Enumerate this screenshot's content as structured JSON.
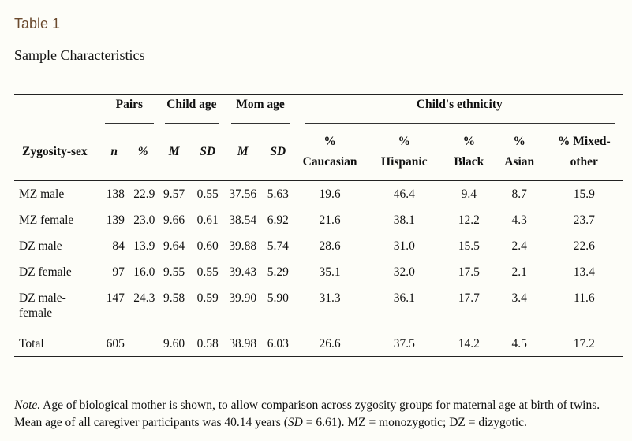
{
  "table_label": "Table 1",
  "table_title": "Sample Characteristics",
  "group_headers": {
    "pairs": "Pairs",
    "child_age": "Child age",
    "mom_age": "Mom age",
    "ethnicity": "Child's ethnicity"
  },
  "col_headers": {
    "zygosity": "Zygosity-sex",
    "n": "n",
    "pct": "%",
    "child_m": "M",
    "child_sd": "SD",
    "mom_m": "M",
    "mom_sd": "SD",
    "caucasian_1": "%",
    "caucasian_2": "Caucasian",
    "hispanic_1": "%",
    "hispanic_2": "Hispanic",
    "black_1": "%",
    "black_2": "Black",
    "asian_1": "%",
    "asian_2": "Asian",
    "mixed_1": "% Mixed-",
    "mixed_2": "other"
  },
  "rows": [
    {
      "group": "MZ male",
      "group2": "",
      "n": "138",
      "pct": "22.9",
      "child_m": "9.57",
      "child_sd": "0.55",
      "mom_m": "37.56",
      "mom_sd": "5.63",
      "caucasian": "19.6",
      "hispanic": "46.4",
      "black": "9.4",
      "asian": "8.7",
      "mixed": "15.9"
    },
    {
      "group": "MZ female",
      "group2": "",
      "n": "139",
      "pct": "23.0",
      "child_m": "9.66",
      "child_sd": "0.61",
      "mom_m": "38.54",
      "mom_sd": "6.92",
      "caucasian": "21.6",
      "hispanic": "38.1",
      "black": "12.2",
      "asian": "4.3",
      "mixed": "23.7"
    },
    {
      "group": "DZ male",
      "group2": "",
      "n": "84",
      "pct": "13.9",
      "child_m": "9.64",
      "child_sd": "0.60",
      "mom_m": "39.88",
      "mom_sd": "5.74",
      "caucasian": "28.6",
      "hispanic": "31.0",
      "black": "15.5",
      "asian": "2.4",
      "mixed": "22.6"
    },
    {
      "group": "DZ female",
      "group2": "",
      "n": "97",
      "pct": "16.0",
      "child_m": "9.55",
      "child_sd": "0.55",
      "mom_m": "39.43",
      "mom_sd": "5.29",
      "caucasian": "35.1",
      "hispanic": "32.0",
      "black": "17.5",
      "asian": "2.1",
      "mixed": "13.4"
    },
    {
      "group": "DZ male-",
      "group2": "female",
      "n": "147",
      "pct": "24.3",
      "child_m": "9.58",
      "child_sd": "0.59",
      "mom_m": "39.90",
      "mom_sd": "5.90",
      "caucasian": "31.3",
      "hispanic": "36.1",
      "black": "17.7",
      "asian": "3.4",
      "mixed": "11.6"
    },
    {
      "group": "Total",
      "group2": "",
      "n": "605",
      "pct": "",
      "child_m": "9.60",
      "child_sd": "0.58",
      "mom_m": "38.98",
      "mom_sd": "6.03",
      "caucasian": "26.6",
      "hispanic": "37.5",
      "black": "14.2",
      "asian": "4.5",
      "mixed": "17.2"
    }
  ],
  "note": {
    "label": "Note.",
    "text_1": " Age of biological mother is shown, to allow comparison across zygosity groups for maternal age at birth of twins. Mean age of all caregiver participants was 40.14 years (",
    "sd_label": "SD",
    "text_2": " = 6.61). MZ = monozygotic; DZ = dizygotic."
  }
}
